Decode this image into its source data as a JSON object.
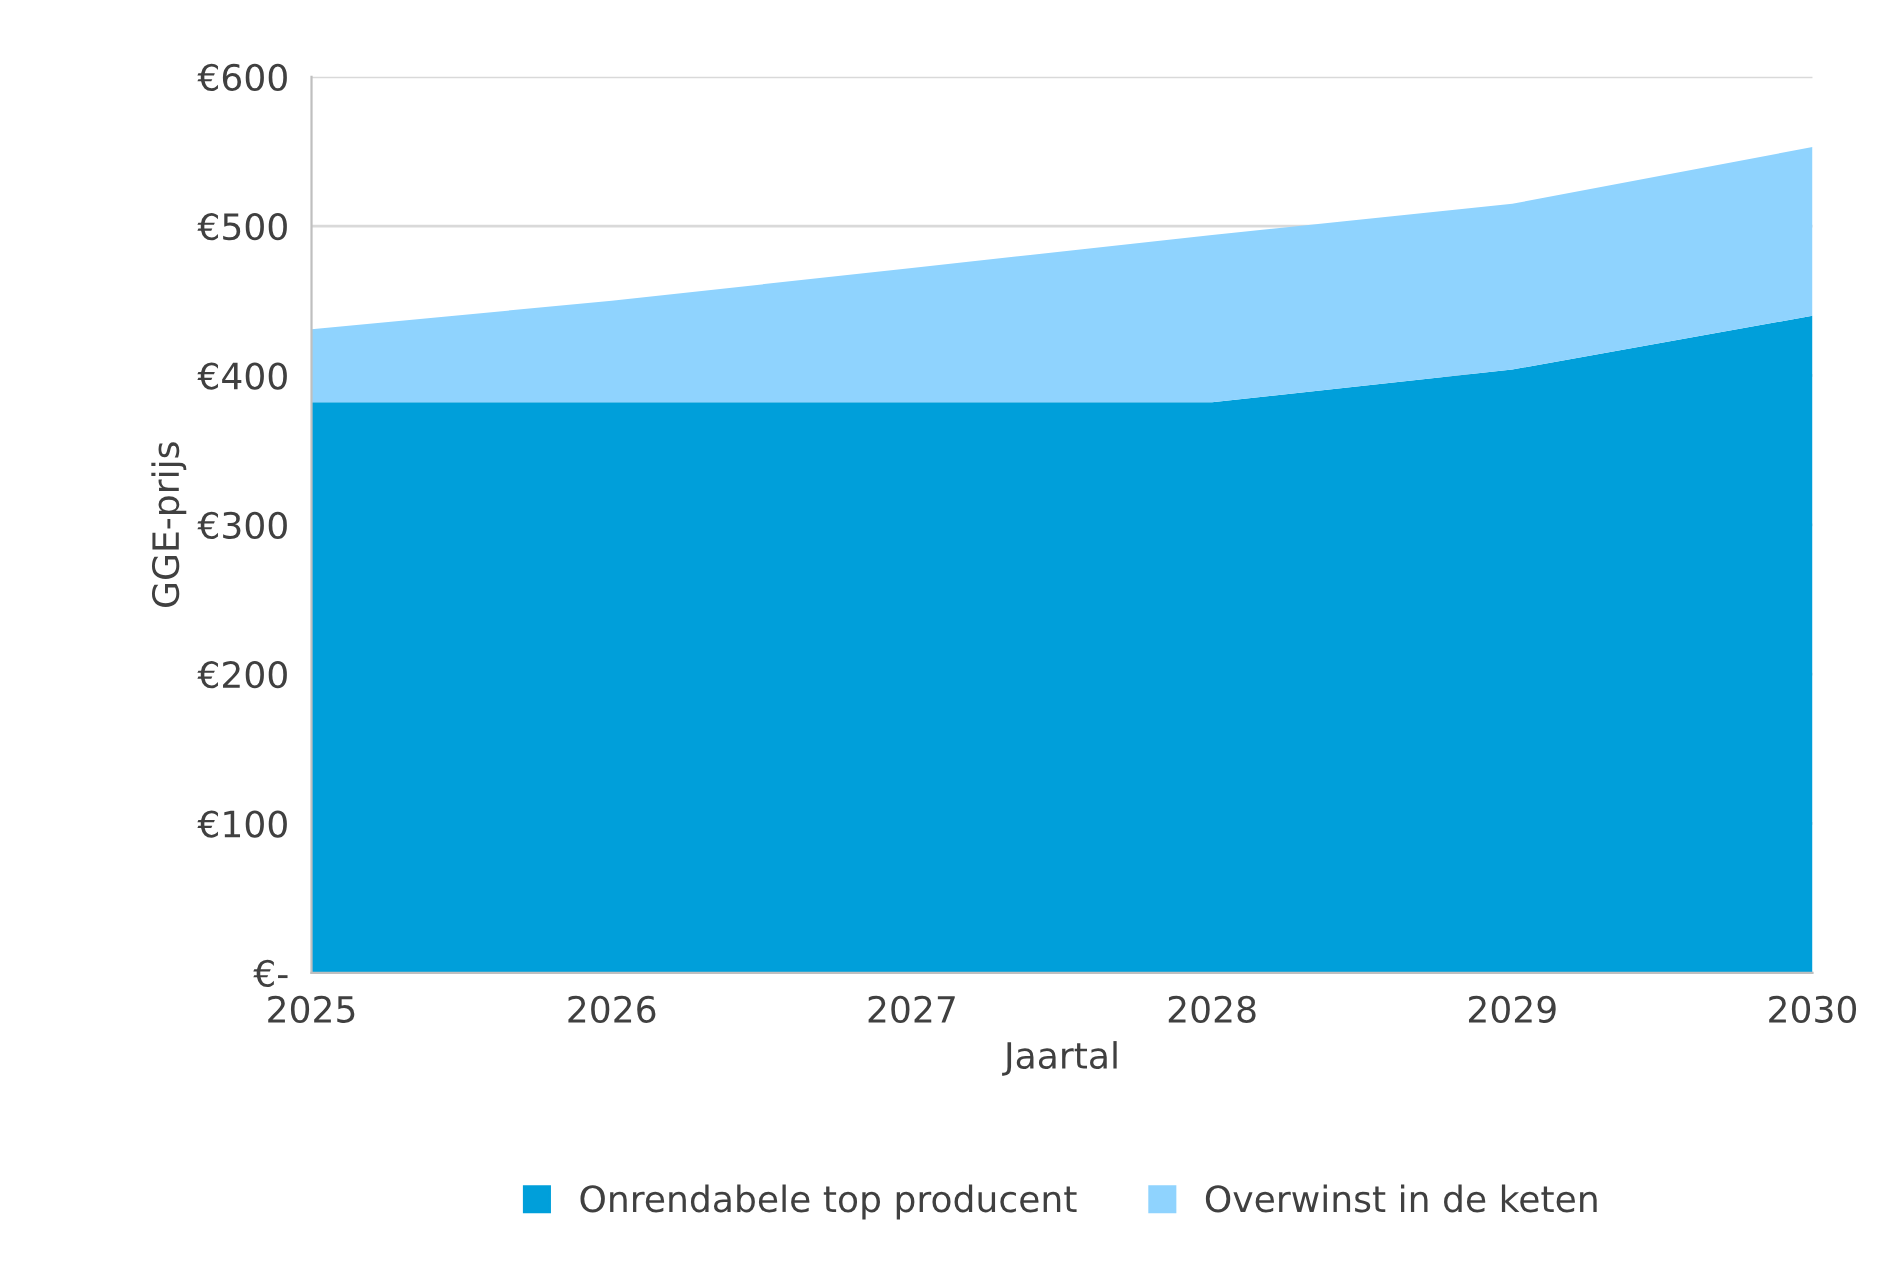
{
  "chart_data": {
    "type": "area",
    "stacked": true,
    "xlabel": "Jaartal",
    "ylabel": "GGE-prijs",
    "x": [
      2025,
      2026,
      2027,
      2028,
      2029,
      2030
    ],
    "series": [
      {
        "name": "Onrendabele top producent",
        "color": "#009fda",
        "values": [
          382,
          382,
          382,
          382,
          404,
          440
        ]
      },
      {
        "name": "Overwinst in de keten",
        "color": "#8fd3fe",
        "values": [
          49,
          68,
          90,
          112,
          111,
          113
        ]
      }
    ],
    "xlim": [
      2025,
      2030
    ],
    "xticks": [
      2025,
      2026,
      2027,
      2028,
      2029,
      2030
    ],
    "ylim": [
      0,
      600
    ],
    "yticks": [
      {
        "value": 0,
        "label": "€-"
      },
      {
        "value": 100,
        "label": "€100"
      },
      {
        "value": 200,
        "label": "€200"
      },
      {
        "value": 300,
        "label": "€300"
      },
      {
        "value": 400,
        "label": "€400"
      },
      {
        "value": 500,
        "label": "€500"
      },
      {
        "value": 600,
        "label": "€600"
      }
    ],
    "grid": "y",
    "legend": "bottom"
  }
}
